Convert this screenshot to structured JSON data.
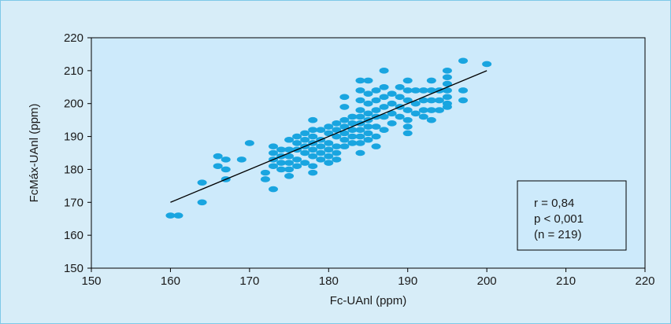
{
  "colors": {
    "background": "#d7edf8",
    "plot_area": "#cdeafb",
    "marker": "#19a5e0",
    "regression_line": "#000000"
  },
  "chart_data": {
    "type": "scatter",
    "xlabel": "Fc-UAnl (ppm)",
    "ylabel": "FcMáx-UAnl (ppm)",
    "xlim": [
      150,
      220
    ],
    "ylim": [
      150,
      220
    ],
    "x_ticks": [
      150,
      160,
      170,
      180,
      190,
      200,
      210,
      220
    ],
    "y_ticks": [
      150,
      160,
      170,
      180,
      190,
      200,
      210,
      220
    ],
    "x_tick_labels": [
      "150",
      "160",
      "170",
      "180",
      "190",
      "200",
      "210",
      "220"
    ],
    "y_tick_labels": [
      "150",
      "160",
      "170",
      "180",
      "190",
      "200",
      "210",
      "220"
    ],
    "grid": false,
    "regression_line": {
      "x": [
        160,
        200
      ],
      "y": [
        170,
        210
      ]
    },
    "stats_box": [
      "r = 0,84",
      "p < 0,001",
      "(n = 219)"
    ],
    "series": [
      {
        "marker": "ellipse",
        "points": [
          [
            160,
            166
          ],
          [
            161,
            166
          ],
          [
            164,
            176
          ],
          [
            164,
            170
          ],
          [
            166,
            184
          ],
          [
            166,
            181
          ],
          [
            167,
            183
          ],
          [
            167,
            180
          ],
          [
            167,
            177
          ],
          [
            169,
            183
          ],
          [
            170,
            188
          ],
          [
            172,
            179
          ],
          [
            172,
            177
          ],
          [
            173,
            187
          ],
          [
            173,
            185
          ],
          [
            173,
            183
          ],
          [
            173,
            181
          ],
          [
            173,
            174
          ],
          [
            174,
            186
          ],
          [
            174,
            184
          ],
          [
            174,
            182
          ],
          [
            174,
            180
          ],
          [
            175,
            189
          ],
          [
            175,
            186
          ],
          [
            175,
            184
          ],
          [
            175,
            182
          ],
          [
            175,
            180
          ],
          [
            175,
            178
          ],
          [
            176,
            190
          ],
          [
            176,
            188
          ],
          [
            176,
            186
          ],
          [
            176,
            183
          ],
          [
            176,
            181
          ],
          [
            177,
            191
          ],
          [
            177,
            189
          ],
          [
            177,
            187
          ],
          [
            177,
            185
          ],
          [
            177,
            182
          ],
          [
            178,
            195
          ],
          [
            178,
            192
          ],
          [
            178,
            190
          ],
          [
            178,
            188
          ],
          [
            178,
            186
          ],
          [
            178,
            184
          ],
          [
            178,
            181
          ],
          [
            178,
            179
          ],
          [
            179,
            192
          ],
          [
            179,
            189
          ],
          [
            179,
            187
          ],
          [
            179,
            185
          ],
          [
            179,
            183
          ],
          [
            180,
            193
          ],
          [
            180,
            191
          ],
          [
            180,
            188
          ],
          [
            180,
            186
          ],
          [
            180,
            184
          ],
          [
            180,
            182
          ],
          [
            181,
            194
          ],
          [
            181,
            192
          ],
          [
            181,
            190
          ],
          [
            181,
            187
          ],
          [
            181,
            185
          ],
          [
            181,
            183
          ],
          [
            182,
            202
          ],
          [
            182,
            199
          ],
          [
            182,
            195
          ],
          [
            182,
            193
          ],
          [
            182,
            191
          ],
          [
            182,
            189
          ],
          [
            182,
            187
          ],
          [
            183,
            196
          ],
          [
            183,
            194
          ],
          [
            183,
            192
          ],
          [
            183,
            190
          ],
          [
            183,
            188
          ],
          [
            184,
            207
          ],
          [
            184,
            204
          ],
          [
            184,
            201
          ],
          [
            184,
            198
          ],
          [
            184,
            196
          ],
          [
            184,
            194
          ],
          [
            184,
            192
          ],
          [
            184,
            190
          ],
          [
            184,
            188
          ],
          [
            184,
            185
          ],
          [
            185,
            207
          ],
          [
            185,
            203
          ],
          [
            185,
            200
          ],
          [
            185,
            197
          ],
          [
            185,
            195
          ],
          [
            185,
            193
          ],
          [
            185,
            191
          ],
          [
            185,
            189
          ],
          [
            186,
            204
          ],
          [
            186,
            201
          ],
          [
            186,
            198
          ],
          [
            186,
            196
          ],
          [
            186,
            193
          ],
          [
            186,
            190
          ],
          [
            186,
            187
          ],
          [
            187,
            210
          ],
          [
            187,
            205
          ],
          [
            187,
            202
          ],
          [
            187,
            199
          ],
          [
            187,
            196
          ],
          [
            187,
            192
          ],
          [
            188,
            203
          ],
          [
            188,
            200
          ],
          [
            188,
            197
          ],
          [
            188,
            194
          ],
          [
            189,
            205
          ],
          [
            189,
            202
          ],
          [
            189,
            199
          ],
          [
            189,
            196
          ],
          [
            190,
            207
          ],
          [
            190,
            204
          ],
          [
            190,
            201
          ],
          [
            190,
            198
          ],
          [
            190,
            195
          ],
          [
            190,
            193
          ],
          [
            190,
            191
          ],
          [
            191,
            204
          ],
          [
            191,
            200
          ],
          [
            191,
            197
          ],
          [
            192,
            204
          ],
          [
            192,
            201
          ],
          [
            192,
            198
          ],
          [
            192,
            196
          ],
          [
            193,
            207
          ],
          [
            193,
            204
          ],
          [
            193,
            201
          ],
          [
            193,
            198
          ],
          [
            193,
            195
          ],
          [
            194,
            204
          ],
          [
            194,
            201
          ],
          [
            194,
            198
          ],
          [
            195,
            210
          ],
          [
            195,
            208
          ],
          [
            195,
            206
          ],
          [
            195,
            204
          ],
          [
            195,
            202
          ],
          [
            195,
            200
          ],
          [
            195,
            199
          ],
          [
            197,
            213
          ],
          [
            197,
            204
          ],
          [
            197,
            201
          ],
          [
            200,
            212
          ]
        ]
      }
    ]
  }
}
